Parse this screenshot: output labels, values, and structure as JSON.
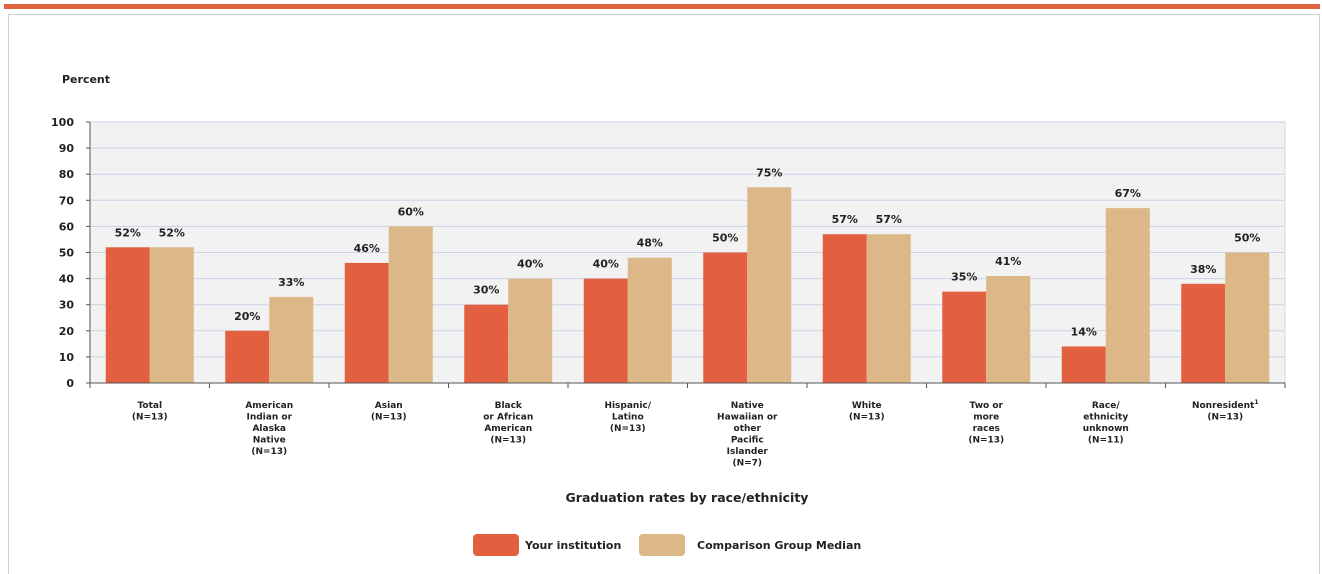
{
  "colors": {
    "top_bar": "#e0623f",
    "your_institution": "#e2603f",
    "comparison_group": "#dcb888",
    "plot_background": "#f2f2f2",
    "gridline": "#c8d4e6",
    "text": "#222222"
  },
  "chart_data": {
    "type": "bar",
    "title": "",
    "xlabel": "Graduation rates by race/ethnicity",
    "ylabel": "Percent",
    "ylim": [
      0,
      100
    ],
    "yticks": [
      "0",
      "10",
      "20",
      "30",
      "40",
      "50",
      "60",
      "70",
      "80",
      "90",
      "100"
    ],
    "grid": true,
    "legend_position": "bottom-center",
    "categories": [
      [
        "Total",
        "(N=13)"
      ],
      [
        "American",
        "Indian or",
        "Alaska",
        "Native",
        "(N=13)"
      ],
      [
        "Asian",
        "(N=13)"
      ],
      [
        "Black",
        "or African",
        "American",
        "(N=13)"
      ],
      [
        "Hispanic/",
        "Latino",
        "(N=13)"
      ],
      [
        "Native",
        "Hawaiian or",
        "other",
        "Pacific",
        "Islander",
        "(N=7)"
      ],
      [
        "White",
        "(N=13)"
      ],
      [
        "Two or",
        "more",
        "races",
        "(N=13)"
      ],
      [
        "Race/",
        "ethnicity",
        "unknown",
        "(N=11)"
      ],
      [
        "Nonresident",
        "(N=13)"
      ]
    ],
    "superscripts": [
      "",
      "",
      "",
      "",
      "",
      "",
      "",
      "",
      "",
      "1"
    ],
    "series": [
      {
        "name": "Your institution",
        "values": [
          52,
          20,
          46,
          30,
          40,
          50,
          57,
          35,
          14,
          38
        ],
        "labels": [
          "52%",
          "20%",
          "46%",
          "30%",
          "40%",
          "50%",
          "57%",
          "35%",
          "14%",
          "38%"
        ]
      },
      {
        "name": "Comparison Group Median",
        "values": [
          52,
          33,
          60,
          40,
          48,
          75,
          57,
          41,
          67,
          50
        ],
        "labels": [
          "52%",
          "33%",
          "60%",
          "40%",
          "48%",
          "75%",
          "57%",
          "41%",
          "67%",
          "50%"
        ]
      }
    ]
  }
}
